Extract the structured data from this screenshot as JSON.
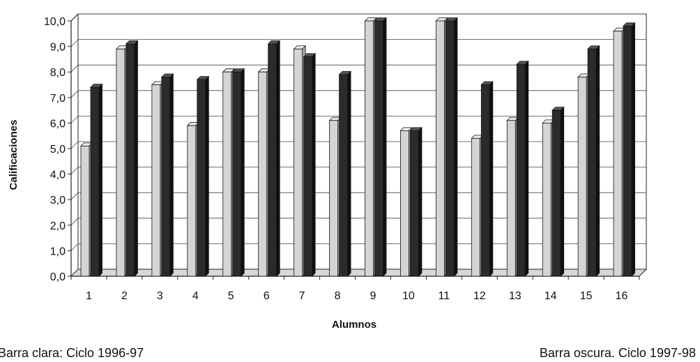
{
  "chart_data": {
    "type": "bar",
    "style": "3d-clustered",
    "xlabel": "Alumnos",
    "ylabel": "Calificaciones",
    "ylim": [
      0,
      10
    ],
    "ytick_labels": [
      "0,0",
      "1,0",
      "2,0",
      "3,0",
      "4,0",
      "5,0",
      "6,0",
      "7,0",
      "8,0",
      "9,0",
      "10,0"
    ],
    "categories": [
      "1",
      "2",
      "3",
      "4",
      "5",
      "6",
      "7",
      "8",
      "9",
      "10",
      "11",
      "12",
      "13",
      "14",
      "15",
      "16"
    ],
    "grid": true,
    "series": [
      {
        "values": [
          5.1,
          8.9,
          7.5,
          5.9,
          8.0,
          8.0,
          8.9,
          6.1,
          10.0,
          5.7,
          10.0,
          5.4,
          6.1,
          6.0,
          7.8,
          9.6
        ],
        "color": "#d4d4d4",
        "shade": "#a8a8a8"
      },
      {
        "values": [
          7.4,
          9.1,
          7.8,
          7.7,
          8.0,
          9.1,
          8.6,
          7.9,
          10.0,
          5.7,
          10.0,
          7.5,
          8.3,
          6.5,
          8.9,
          9.8
        ],
        "color": "#2b2b2b",
        "shade": "#111111"
      }
    ]
  },
  "notes": {
    "left": "Barra clara: Ciclo 1996-97",
    "right": "Barra oscura. Ciclo 1997-98"
  }
}
